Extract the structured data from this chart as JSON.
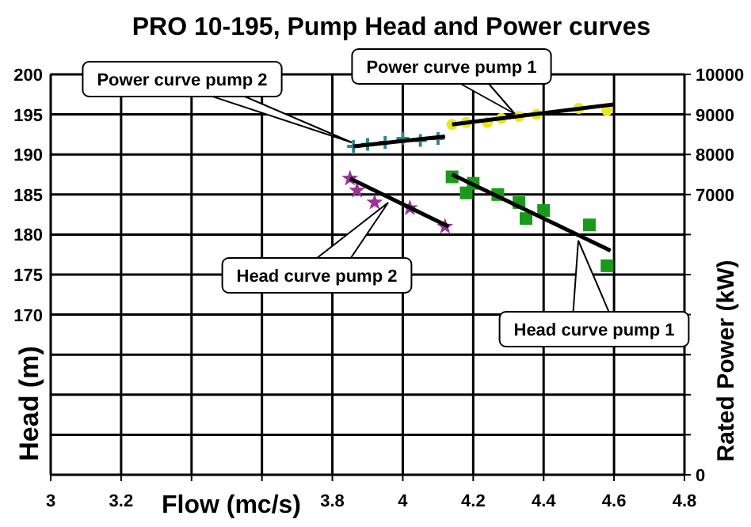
{
  "chart_data": {
    "type": "scatter",
    "title": "PRO 10-195, Pump Head and Power curves",
    "xlabel": "Flow (mc/s)",
    "ylabel": "Head (m)",
    "y2label": "Rated Power  (kW)",
    "xlim": [
      3,
      4.8
    ],
    "xticks": [
      3,
      3.2,
      {
        "value": 3.4,
        "label": null
      },
      {
        "value": 3.6,
        "label": null
      },
      3.8,
      4,
      4.2,
      4.4,
      4.6,
      4.8
    ],
    "ylim": [
      150,
      200
    ],
    "yticks": [
      {
        "value": 150,
        "label": null
      },
      {
        "value": 155,
        "label": null
      },
      {
        "value": 160,
        "label": null
      },
      {
        "value": 165,
        "label": null
      },
      170,
      175,
      180,
      185,
      190,
      195,
      200
    ],
    "y2lim": [
      0,
      10000
    ],
    "y2ticks": [
      0,
      {
        "value": 1000,
        "label": null
      },
      {
        "value": 2000,
        "label": null
      },
      {
        "value": 3000,
        "label": null
      },
      {
        "value": 4000,
        "label": null
      },
      {
        "value": 5000,
        "label": null
      },
      {
        "value": 6000,
        "label": null
      },
      7000,
      8000,
      9000,
      10000
    ],
    "grid": true,
    "series": [
      {
        "color": "#2e8b8b",
        "marker": "cross",
        "axis": "y2",
        "x": [
          3.86,
          3.9,
          3.95,
          4.0,
          4.05,
          4.1
        ],
        "values": [
          8200,
          8250,
          8300,
          8400,
          8350,
          8400
        ]
      },
      {
        "type": "line",
        "color": "#000000",
        "marker": "none",
        "axis": "y2",
        "x": [
          3.86,
          4.12
        ],
        "values": [
          8200,
          8450
        ]
      },
      {
        "color": "#e8e820",
        "marker": "circle",
        "axis": "y2",
        "x": [
          4.14,
          4.18,
          4.24,
          4.28,
          4.33,
          4.38,
          4.5,
          4.58
        ],
        "values": [
          8750,
          8800,
          8800,
          8900,
          8950,
          9000,
          9150,
          9100
        ]
      },
      {
        "type": "line",
        "color": "#000000",
        "marker": "none",
        "axis": "y2",
        "x": [
          4.14,
          4.6
        ],
        "values": [
          8750,
          9250
        ]
      },
      {
        "color": "#993399",
        "marker": "star",
        "x": [
          3.85,
          3.87,
          3.92,
          4.02,
          4.12
        ],
        "values": [
          187,
          185.5,
          184,
          183.3,
          181
        ]
      },
      {
        "type": "line",
        "color": "#000000",
        "marker": "none",
        "x": [
          3.85,
          4.13
        ],
        "values": [
          187,
          181
        ]
      },
      {
        "color": "#1a9a1a",
        "marker": "square",
        "x": [
          4.14,
          4.18,
          4.2,
          4.27,
          4.33,
          4.35,
          4.4,
          4.53,
          4.58
        ],
        "values": [
          187.2,
          185.2,
          186.4,
          185,
          184,
          182,
          183,
          181.2,
          176.1
        ]
      },
      {
        "type": "line",
        "color": "#000000",
        "marker": "none",
        "x": [
          4.14,
          4.59
        ],
        "values": [
          187.5,
          178
        ]
      }
    ],
    "annotations": [
      "Power curve pump 2",
      "Power curve pump 1",
      "Head curve pump 2",
      "Head curve pump 1"
    ]
  }
}
